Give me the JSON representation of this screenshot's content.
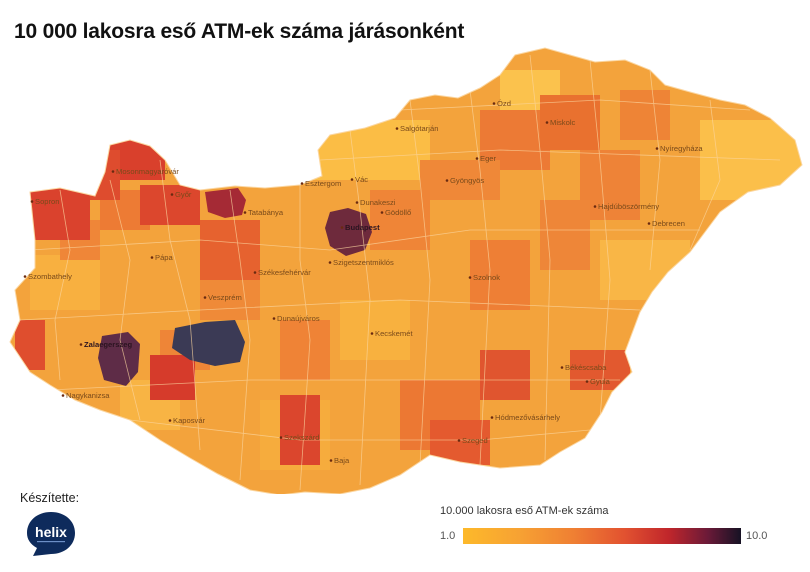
{
  "title": "10 000 lakosra eső ATM-ek száma járásonként",
  "credit_label": "Készítette:",
  "logo_text": "helix",
  "legend": {
    "title": "10.000 lakosra eső ATM-ek száma",
    "min_label": "1.0",
    "max_label": "10.0",
    "min_value": 1.0,
    "max_value": 10.0,
    "colors": [
      "#fdb92a",
      "#f7a233",
      "#ef7f33",
      "#e25230",
      "#c0262b",
      "#6b1a38",
      "#161224"
    ]
  },
  "colors": {
    "country_base": "#f3a33c",
    "border": "#fbd6a0"
  },
  "cities": [
    {
      "name": "Ózd",
      "dark": false
    },
    {
      "name": "Miskolc",
      "dark": false
    },
    {
      "name": "Salgótarján",
      "dark": false
    },
    {
      "name": "Nyíregyháza",
      "dark": false
    },
    {
      "name": "Eger",
      "dark": false
    },
    {
      "name": "Mosonmagyaróvár",
      "dark": false
    },
    {
      "name": "Esztergom",
      "dark": false
    },
    {
      "name": "Vác",
      "dark": false
    },
    {
      "name": "Gyöngyös",
      "dark": false
    },
    {
      "name": "Sopron",
      "dark": false
    },
    {
      "name": "Győr",
      "dark": false
    },
    {
      "name": "Dunakeszi",
      "dark": false
    },
    {
      "name": "Gödöllő",
      "dark": false
    },
    {
      "name": "Hajdúböszörmény",
      "dark": false
    },
    {
      "name": "Tatabánya",
      "dark": false
    },
    {
      "name": "Budapest",
      "dark": true
    },
    {
      "name": "Debrecen",
      "dark": false
    },
    {
      "name": "Pápa",
      "dark": false
    },
    {
      "name": "Szigetszentmiklós",
      "dark": false
    },
    {
      "name": "Székesfehérvár",
      "dark": false
    },
    {
      "name": "Szombathely",
      "dark": false
    },
    {
      "name": "Szolnok",
      "dark": false
    },
    {
      "name": "Veszprém",
      "dark": false
    },
    {
      "name": "Dunaújváros",
      "dark": false
    },
    {
      "name": "Kecskemét",
      "dark": false
    },
    {
      "name": "Zalaegerszeg",
      "dark": true
    },
    {
      "name": "Békéscsaba",
      "dark": false
    },
    {
      "name": "Gyula",
      "dark": false
    },
    {
      "name": "Nagykanizsa",
      "dark": false
    },
    {
      "name": "Kaposvár",
      "dark": false
    },
    {
      "name": "Hódmezővásárhely",
      "dark": false
    },
    {
      "name": "Szekszárd",
      "dark": false
    },
    {
      "name": "Szeged",
      "dark": false
    },
    {
      "name": "Baja",
      "dark": false
    }
  ]
}
